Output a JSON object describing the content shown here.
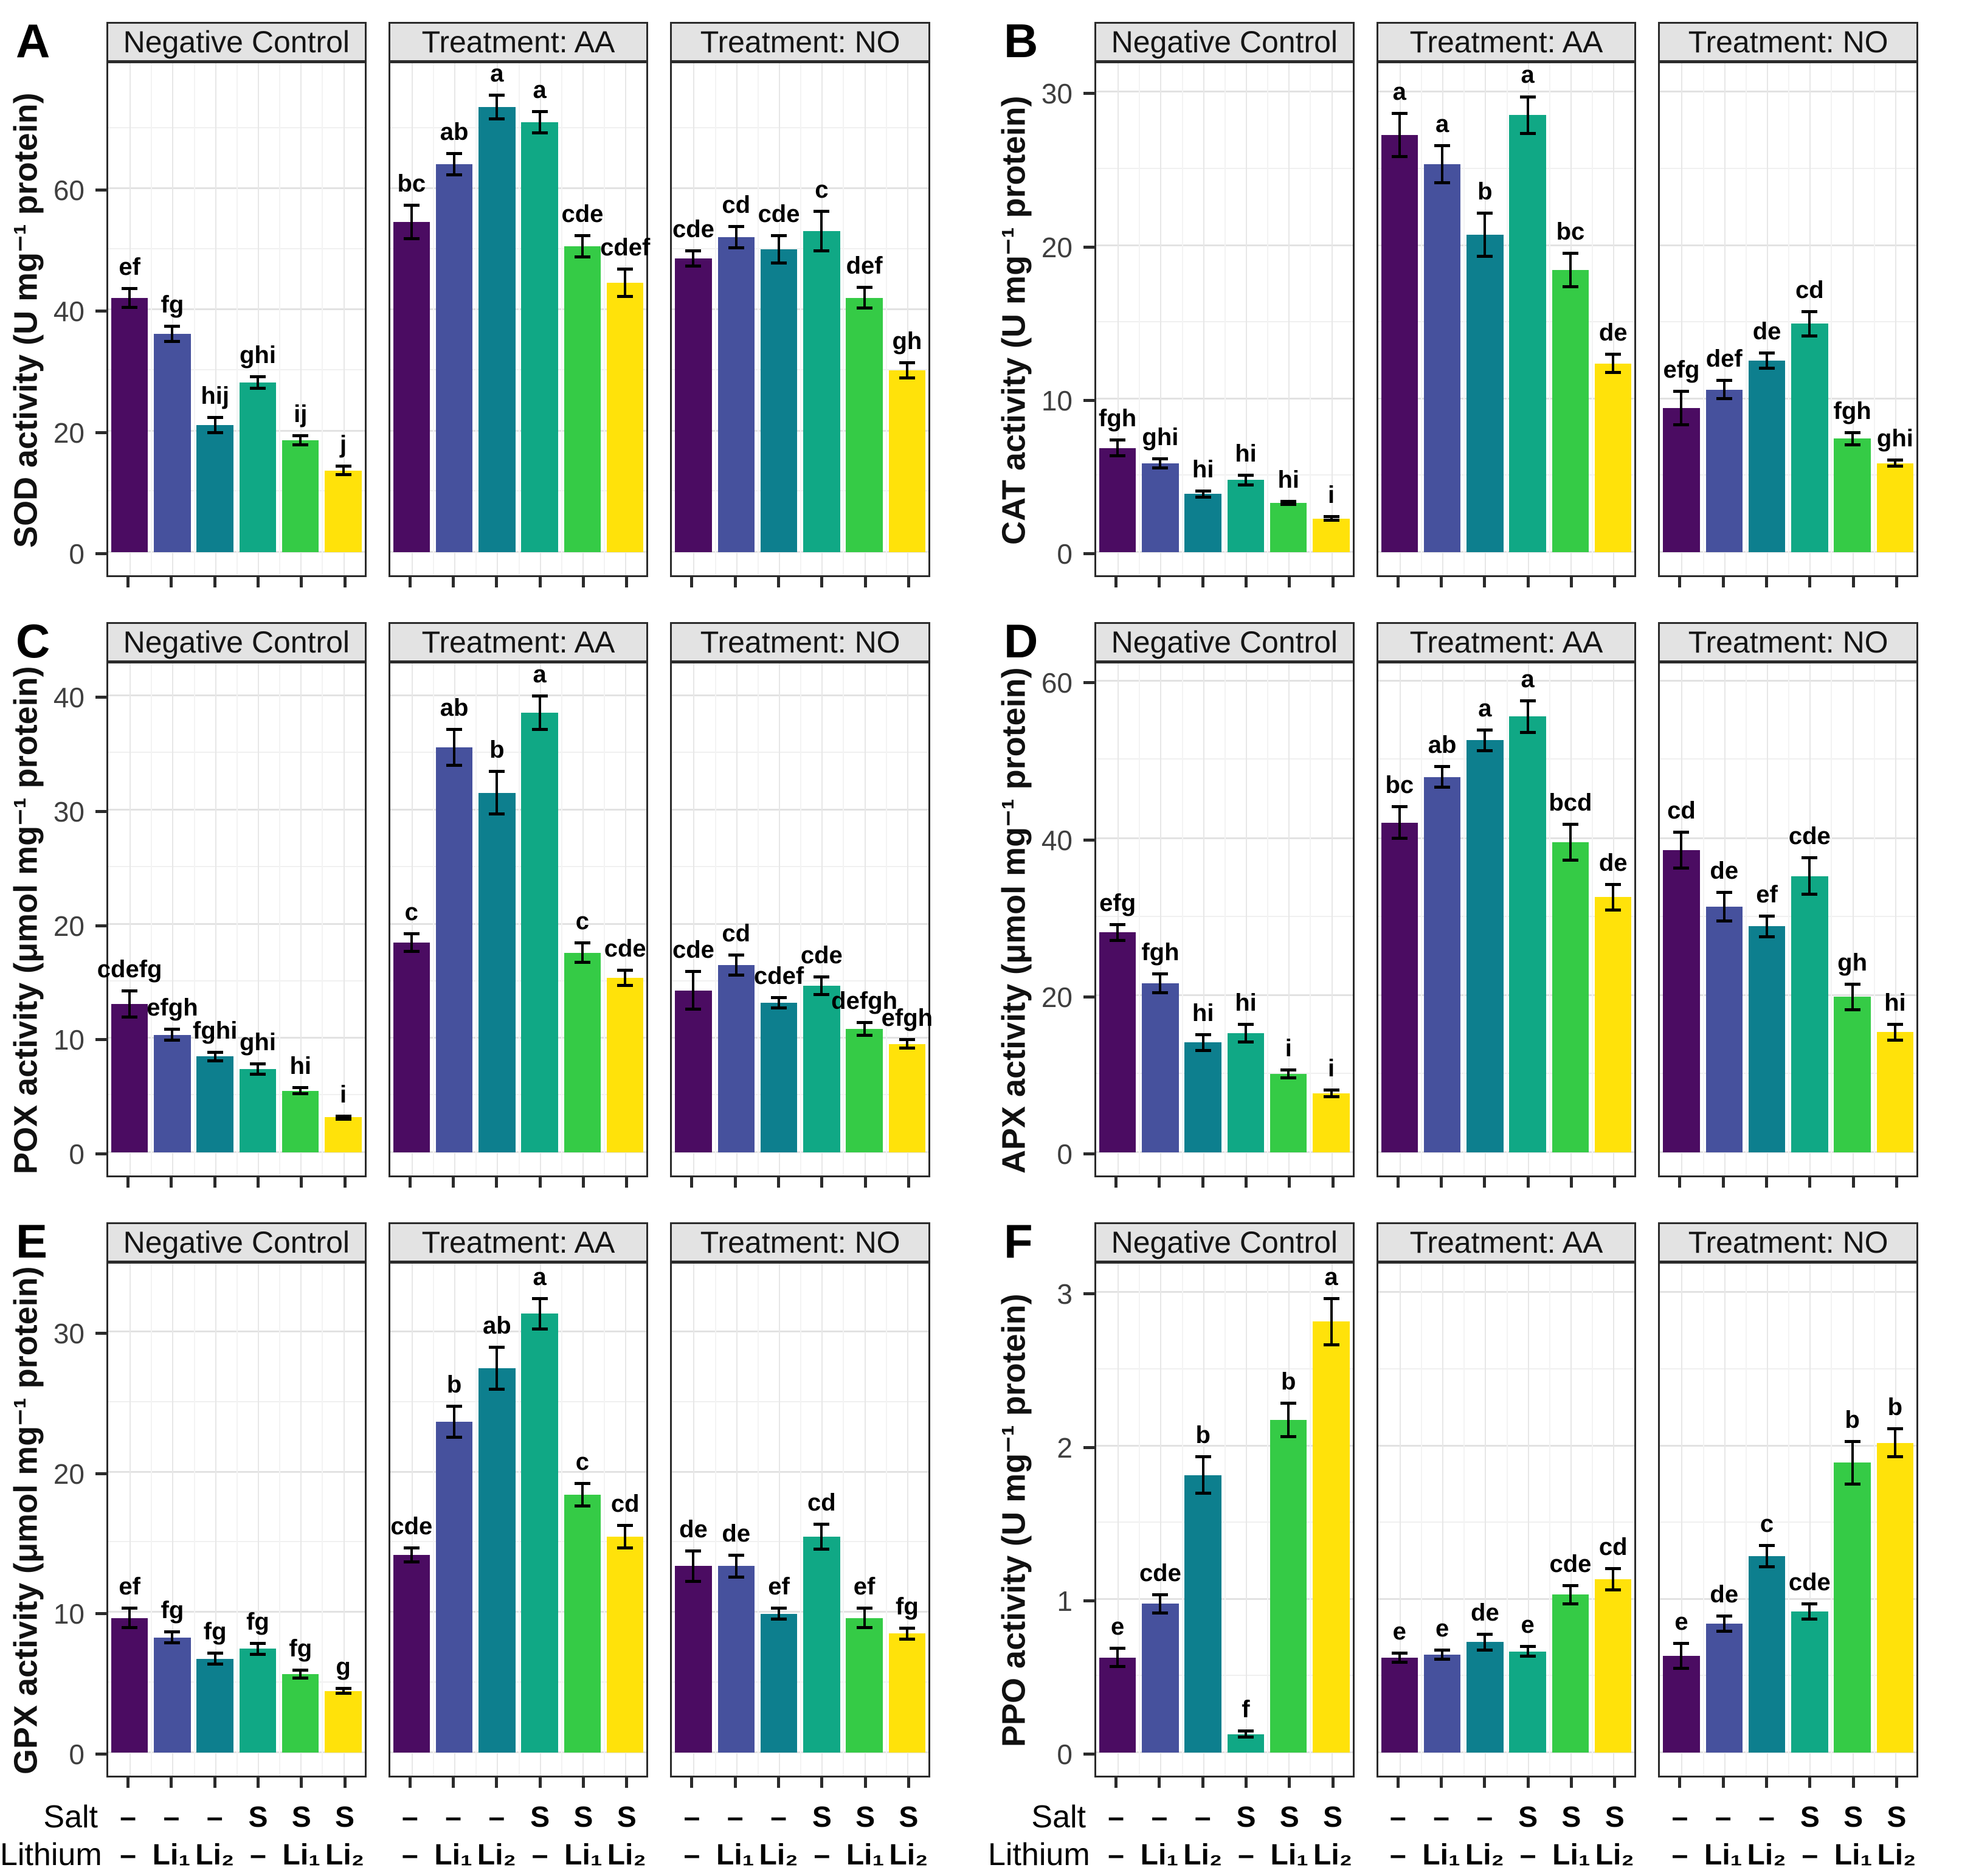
{
  "axis": {
    "salt_label": "Salt",
    "lithium_label": "Lithium",
    "salt": [
      "–",
      "–",
      "–",
      "S",
      "S",
      "S"
    ],
    "lithium": [
      "–",
      "Li₁",
      "Li₂",
      "–",
      "Li₁",
      "Li₂"
    ]
  },
  "bar_colors": [
    "#4b0c62",
    "#46519d",
    "#0d7f8e",
    "#10a885",
    "#35cb46",
    "#ffe20a"
  ],
  "chart_data": [
    {
      "type": "bar",
      "panel": "A",
      "ylabel": "SOD activity (U mg⁻¹ protein)",
      "ylim": [
        0,
        81
      ],
      "yticks": [
        0,
        20,
        40,
        60
      ],
      "grid": true,
      "show_x_labels": false,
      "facets": [
        {
          "label": "Negative Control",
          "values": [
            42,
            36,
            21,
            28,
            18.5,
            13.5
          ],
          "errors": [
            1.8,
            1.5,
            1.5,
            1.2,
            1,
            1
          ],
          "letters": [
            "ef",
            "fg",
            "hij",
            "ghi",
            "ij",
            "j"
          ]
        },
        {
          "label": "Treatment: AA",
          "values": [
            54.5,
            64,
            73.5,
            71,
            50.5,
            44.5
          ],
          "errors": [
            3,
            2,
            2.2,
            2,
            2,
            2.5
          ],
          "letters": [
            "bc",
            "ab",
            "a",
            "a",
            "cde",
            "cdef"
          ]
        },
        {
          "label": "Treatment: NO",
          "values": [
            48.5,
            52,
            50,
            53,
            42,
            30
          ],
          "errors": [
            1.5,
            2,
            2.5,
            3.5,
            2,
            1.5
          ],
          "letters": [
            "cde",
            "cd",
            "cde",
            "c",
            "def",
            "gh"
          ]
        }
      ]
    },
    {
      "type": "bar",
      "panel": "B",
      "ylabel": "CAT activity (U mg⁻¹ protein)",
      "ylim": [
        0,
        32
      ],
      "yticks": [
        0,
        10,
        20,
        30
      ],
      "grid": true,
      "show_x_labels": false,
      "facets": [
        {
          "label": "Negative Control",
          "values": [
            6.8,
            5.8,
            3.8,
            4.7,
            3.2,
            2.2
          ],
          "errors": [
            0.6,
            0.4,
            0.3,
            0.4,
            0.2,
            0.2
          ],
          "letters": [
            "fgh",
            "ghi",
            "hi",
            "hi",
            "hi",
            "i"
          ]
        },
        {
          "label": "Treatment: AA",
          "values": [
            27.2,
            25.3,
            20.7,
            28.5,
            18.4,
            12.3
          ],
          "errors": [
            1.5,
            1.3,
            1.5,
            1.3,
            1.2,
            0.7
          ],
          "letters": [
            "a",
            "a",
            "b",
            "a",
            "bc",
            "de"
          ]
        },
        {
          "label": "Treatment: NO",
          "values": [
            9.4,
            10.6,
            12.5,
            14.9,
            7.4,
            5.8
          ],
          "errors": [
            1.2,
            0.7,
            0.6,
            0.9,
            0.5,
            0.3
          ],
          "letters": [
            "efg",
            "def",
            "de",
            "cd",
            "fgh",
            "ghi"
          ]
        }
      ]
    },
    {
      "type": "bar",
      "panel": "C",
      "ylabel": "POX activity (μmol mg⁻¹ protein)",
      "ylim": [
        0,
        43
      ],
      "yticks": [
        0,
        10,
        20,
        30,
        40
      ],
      "grid": true,
      "show_x_labels": false,
      "facets": [
        {
          "label": "Negative Control",
          "values": [
            13,
            10.3,
            8.4,
            7.3,
            5.4,
            3.1
          ],
          "errors": [
            1.3,
            0.6,
            0.5,
            0.6,
            0.4,
            0.2
          ],
          "letters": [
            "cdefg",
            "efgh",
            "fghi",
            "ghi",
            "hi",
            "i"
          ]
        },
        {
          "label": "Treatment: AA",
          "values": [
            18.4,
            35.5,
            31.5,
            38.5,
            17.5,
            15.3
          ],
          "errors": [
            0.9,
            1.7,
            2,
            1.6,
            1,
            0.8
          ],
          "letters": [
            "c",
            "ab",
            "b",
            "a",
            "c",
            "cde"
          ]
        },
        {
          "label": "Treatment: NO",
          "values": [
            14.2,
            16.4,
            13.1,
            14.6,
            10.8,
            9.5
          ],
          "errors": [
            1.8,
            1,
            0.6,
            0.9,
            0.7,
            0.5
          ],
          "letters": [
            "cde",
            "cd",
            "cdef",
            "cde",
            "defgh",
            "efgh"
          ]
        }
      ]
    },
    {
      "type": "bar",
      "panel": "D",
      "ylabel": "APX activity (μmol mg⁻¹ protein)",
      "ylim": [
        0,
        62.5
      ],
      "yticks": [
        0,
        20,
        40,
        60
      ],
      "grid": true,
      "show_x_labels": false,
      "facets": [
        {
          "label": "Negative Control",
          "values": [
            28,
            21.5,
            14,
            15.2,
            10,
            7.5
          ],
          "errors": [
            1.2,
            1.4,
            1.2,
            1.3,
            0.7,
            0.6
          ],
          "letters": [
            "efg",
            "fgh",
            "hi",
            "hi",
            "i",
            "i"
          ]
        },
        {
          "label": "Treatment: AA",
          "values": [
            42,
            47.8,
            52.5,
            55.5,
            39.5,
            32.5
          ],
          "errors": [
            2.2,
            1.5,
            1.5,
            2.2,
            2.5,
            1.8
          ],
          "letters": [
            "bc",
            "ab",
            "a",
            "a",
            "bcd",
            "de"
          ]
        },
        {
          "label": "Treatment: NO",
          "values": [
            38.5,
            31.3,
            28.8,
            35.2,
            19.8,
            15.3
          ],
          "errors": [
            2.5,
            2,
            1.5,
            2.5,
            1.8,
            1.2
          ],
          "letters": [
            "cd",
            "de",
            "ef",
            "cde",
            "gh",
            "hi"
          ]
        }
      ]
    },
    {
      "type": "bar",
      "panel": "E",
      "ylabel": "GPX activity (μmol mg⁻¹ protein)",
      "ylim": [
        0,
        35
      ],
      "yticks": [
        0,
        10,
        20,
        30
      ],
      "grid": true,
      "show_x_labels": true,
      "facets": [
        {
          "label": "Negative Control",
          "values": [
            9.6,
            8.2,
            6.7,
            7.4,
            5.6,
            4.4
          ],
          "errors": [
            0.8,
            0.5,
            0.5,
            0.5,
            0.4,
            0.3
          ],
          "letters": [
            "ef",
            "fg",
            "fg",
            "fg",
            "fg",
            "g"
          ]
        },
        {
          "label": "Treatment: AA",
          "values": [
            14.1,
            23.6,
            27.4,
            31.3,
            18.4,
            15.4
          ],
          "errors": [
            0.6,
            1.2,
            1.6,
            1.2,
            0.9,
            0.9
          ],
          "letters": [
            "cde",
            "b",
            "ab",
            "a",
            "c",
            "cd"
          ]
        },
        {
          "label": "Treatment: NO",
          "values": [
            13.3,
            13.3,
            9.9,
            15.4,
            9.6,
            8.5
          ],
          "errors": [
            1.2,
            0.9,
            0.5,
            1,
            0.8,
            0.5
          ],
          "letters": [
            "de",
            "de",
            "ef",
            "cd",
            "ef",
            "fg"
          ]
        }
      ]
    },
    {
      "type": "bar",
      "panel": "F",
      "ylabel": "PPO activity (U mg⁻¹ protein)",
      "ylim": [
        0,
        3.2
      ],
      "yticks": [
        0,
        1,
        2,
        3
      ],
      "grid": true,
      "show_x_labels": true,
      "facets": [
        {
          "label": "Negative Control",
          "values": [
            0.62,
            0.97,
            1.81,
            0.12,
            2.17,
            2.81
          ],
          "errors": [
            0.07,
            0.07,
            0.13,
            0.03,
            0.12,
            0.16
          ],
          "letters": [
            "e",
            "cde",
            "b",
            "f",
            "b",
            "a"
          ]
        },
        {
          "label": "Treatment: AA",
          "values": [
            0.62,
            0.64,
            0.72,
            0.66,
            1.03,
            1.13
          ],
          "errors": [
            0.04,
            0.04,
            0.06,
            0.04,
            0.07,
            0.08
          ],
          "letters": [
            "e",
            "e",
            "de",
            "e",
            "cde",
            "cd"
          ]
        },
        {
          "label": "Treatment: NO",
          "values": [
            0.63,
            0.84,
            1.28,
            0.92,
            1.89,
            2.02
          ],
          "errors": [
            0.09,
            0.06,
            0.08,
            0.06,
            0.15,
            0.1
          ],
          "letters": [
            "e",
            "de",
            "c",
            "cde",
            "b",
            "b"
          ]
        }
      ]
    }
  ]
}
